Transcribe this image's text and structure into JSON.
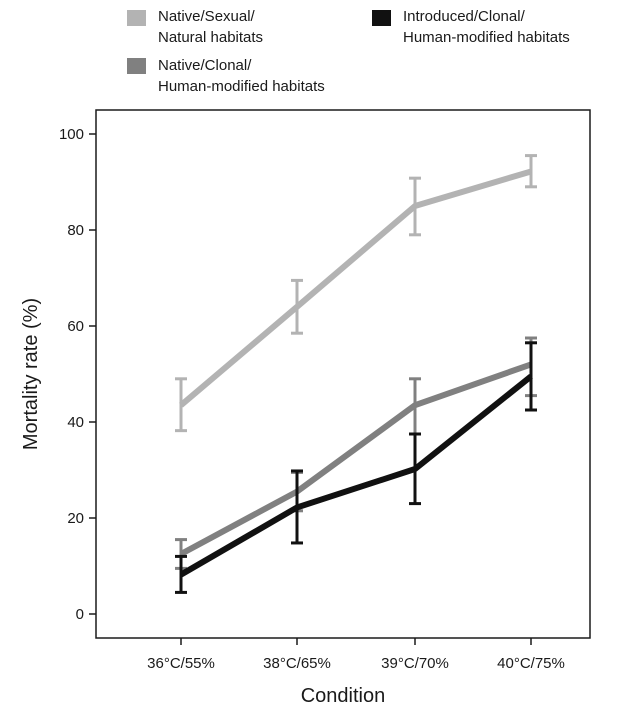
{
  "chart_data": {
    "type": "line",
    "xlabel": "Condition",
    "ylabel": "Mortality rate (%)",
    "categories": [
      "36°C/55%",
      "38°C/65%",
      "39°C/70%",
      "40°C/75%"
    ],
    "ylim": [
      -5,
      105
    ],
    "yticks": [
      0,
      20,
      40,
      60,
      80,
      100
    ],
    "grid": false,
    "legend_position": "top",
    "series": [
      {
        "name_lines": [
          "Native/Sexual/",
          "Natural habitats"
        ],
        "color": "#b3b3b3",
        "values": [
          43.5,
          64,
          85,
          92.2
        ],
        "err_low": [
          38.2,
          58.5,
          79,
          89
        ],
        "err_high": [
          49,
          69.5,
          90.8,
          95.5
        ]
      },
      {
        "name_lines": [
          "Native/Clonal/",
          "Human-modified habitats"
        ],
        "color": "#808080",
        "values": [
          12.5,
          25.5,
          43.5,
          52
        ],
        "err_low": [
          9.5,
          21.5,
          37.5,
          45.5
        ],
        "err_high": [
          15.5,
          29.5,
          49,
          57.5
        ]
      },
      {
        "name_lines": [
          "Introduced/Clonal/",
          "Human-modified habitats"
        ],
        "color": "#111111",
        "values": [
          8.2,
          22.2,
          30.2,
          49.5
        ],
        "err_low": [
          4.5,
          14.8,
          23,
          42.5
        ],
        "err_high": [
          12,
          29.8,
          37.5,
          56.5
        ]
      }
    ]
  }
}
